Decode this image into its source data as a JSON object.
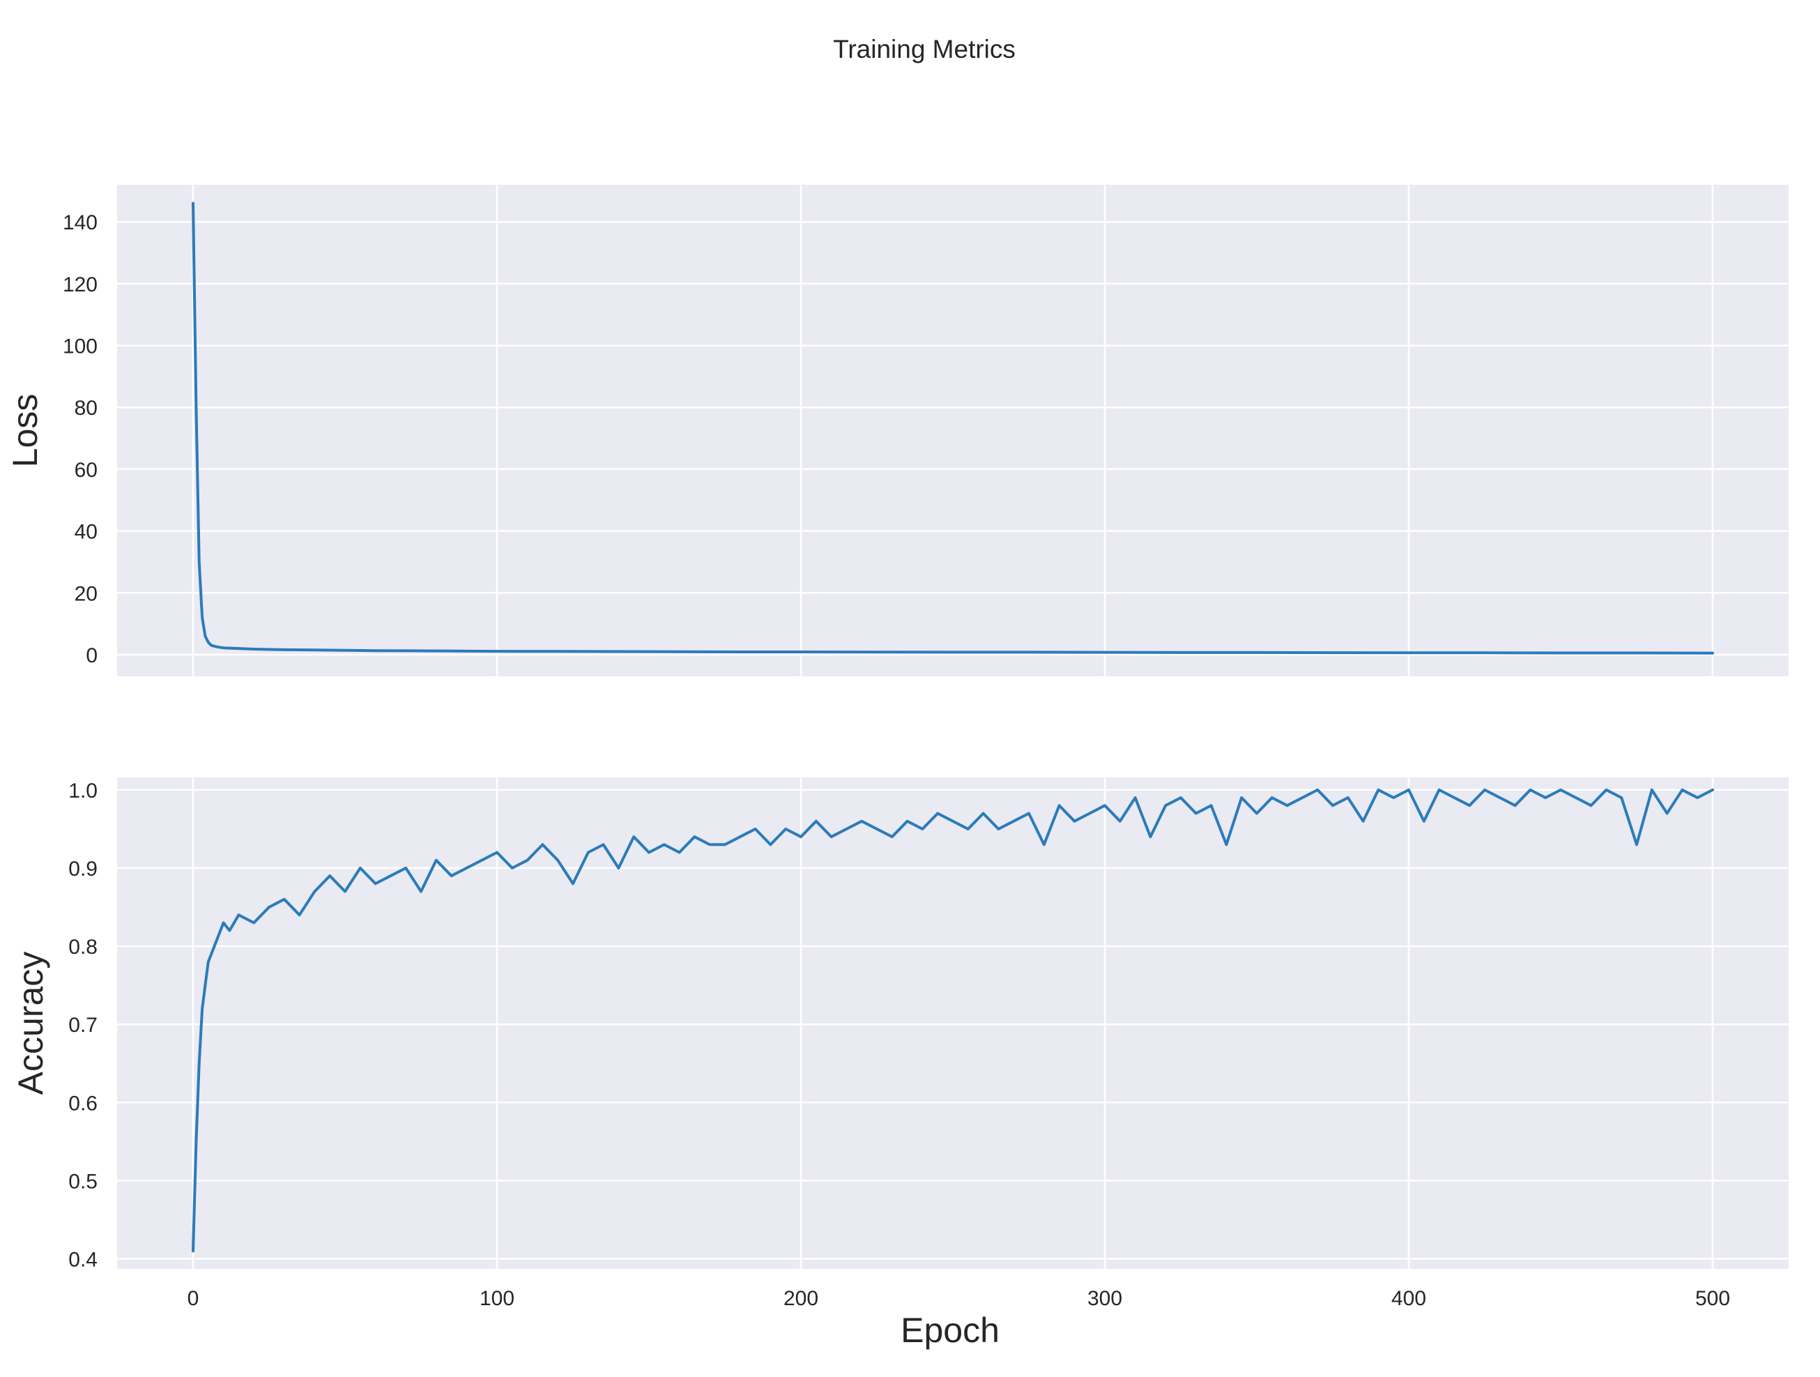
{
  "figure": {
    "title": "Training Metrics",
    "xlabel": "Epoch",
    "background_color": "#eaeaf2",
    "line_color": "#2b7bba"
  },
  "chart_data": [
    {
      "type": "line",
      "title": "",
      "xlabel": "Epoch",
      "ylabel": "Loss",
      "xlim": [
        -25,
        525
      ],
      "ylim": [
        -7,
        152
      ],
      "xticks": [
        0,
        100,
        200,
        300,
        400,
        500
      ],
      "xtick_labels": [
        "0",
        "100",
        "200",
        "300",
        "400",
        "500"
      ],
      "xtick_labels_visible": false,
      "yticks": [
        0,
        20,
        40,
        60,
        80,
        100,
        120,
        140
      ],
      "ytick_labels": [
        "0",
        "20",
        "40",
        "60",
        "80",
        "100",
        "120",
        "140"
      ],
      "grid": true,
      "legend": "none",
      "x": [
        0,
        1,
        2,
        3,
        4,
        5,
        6,
        8,
        10,
        15,
        20,
        30,
        40,
        50,
        60,
        70,
        80,
        90,
        100,
        120,
        140,
        160,
        180,
        200,
        225,
        250,
        275,
        300,
        325,
        350,
        375,
        400,
        425,
        450,
        475,
        500
      ],
      "series": [
        {
          "values": [
            146,
            80,
            30,
            12,
            6,
            4,
            3,
            2.5,
            2.2,
            2.0,
            1.8,
            1.6,
            1.5,
            1.4,
            1.3,
            1.25,
            1.2,
            1.15,
            1.1,
            1.05,
            1.0,
            0.95,
            0.9,
            0.9,
            0.85,
            0.8,
            0.8,
            0.75,
            0.7,
            0.7,
            0.65,
            0.6,
            0.6,
            0.55,
            0.55,
            0.5
          ]
        }
      ]
    },
    {
      "type": "line",
      "title": "",
      "xlabel": "Epoch",
      "ylabel": "Accuracy",
      "xlim": [
        -25,
        525
      ],
      "ylim": [
        0.387,
        1.016
      ],
      "xticks": [
        0,
        100,
        200,
        300,
        400,
        500
      ],
      "xtick_labels": [
        "0",
        "100",
        "200",
        "300",
        "400",
        "500"
      ],
      "yticks": [
        0.4,
        0.5,
        0.6,
        0.7,
        0.8,
        0.9,
        1.0
      ],
      "ytick_labels": [
        "0.4",
        "0.5",
        "0.6",
        "0.7",
        "0.8",
        "0.9",
        "1.0"
      ],
      "grid": true,
      "legend": "none",
      "x": [
        0,
        1,
        2,
        3,
        4,
        5,
        6,
        8,
        10,
        12,
        15,
        20,
        25,
        30,
        35,
        40,
        45,
        50,
        55,
        60,
        65,
        70,
        75,
        80,
        85,
        90,
        95,
        100,
        105,
        110,
        115,
        120,
        125,
        130,
        135,
        140,
        145,
        150,
        155,
        160,
        165,
        170,
        175,
        180,
        185,
        190,
        195,
        200,
        205,
        210,
        215,
        220,
        225,
        230,
        235,
        240,
        245,
        250,
        255,
        260,
        265,
        270,
        275,
        280,
        285,
        290,
        295,
        300,
        305,
        310,
        315,
        320,
        325,
        330,
        335,
        340,
        345,
        350,
        355,
        360,
        365,
        370,
        375,
        380,
        385,
        390,
        395,
        400,
        405,
        410,
        415,
        420,
        425,
        430,
        435,
        440,
        445,
        450,
        455,
        460,
        465,
        470,
        475,
        480,
        485,
        490,
        495,
        500
      ],
      "series": [
        {
          "values": [
            0.41,
            0.55,
            0.65,
            0.72,
            0.75,
            0.78,
            0.79,
            0.81,
            0.83,
            0.82,
            0.84,
            0.83,
            0.85,
            0.86,
            0.84,
            0.87,
            0.89,
            0.87,
            0.9,
            0.88,
            0.89,
            0.9,
            0.87,
            0.91,
            0.89,
            0.9,
            0.91,
            0.92,
            0.9,
            0.91,
            0.93,
            0.91,
            0.88,
            0.92,
            0.93,
            0.9,
            0.94,
            0.92,
            0.93,
            0.92,
            0.94,
            0.93,
            0.93,
            0.94,
            0.95,
            0.93,
            0.95,
            0.94,
            0.96,
            0.94,
            0.95,
            0.96,
            0.95,
            0.94,
            0.96,
            0.95,
            0.97,
            0.96,
            0.95,
            0.97,
            0.95,
            0.96,
            0.97,
            0.93,
            0.98,
            0.96,
            0.97,
            0.98,
            0.96,
            0.99,
            0.94,
            0.98,
            0.99,
            0.97,
            0.98,
            0.93,
            0.99,
            0.97,
            0.99,
            0.98,
            0.99,
            1.0,
            0.98,
            0.99,
            0.96,
            1.0,
            0.99,
            1.0,
            0.96,
            1.0,
            0.99,
            0.98,
            1.0,
            0.99,
            0.98,
            1.0,
            0.99,
            1.0,
            0.99,
            0.98,
            1.0,
            0.99,
            0.93,
            1.0,
            0.97,
            1.0,
            0.99,
            1.0
          ]
        }
      ]
    }
  ]
}
